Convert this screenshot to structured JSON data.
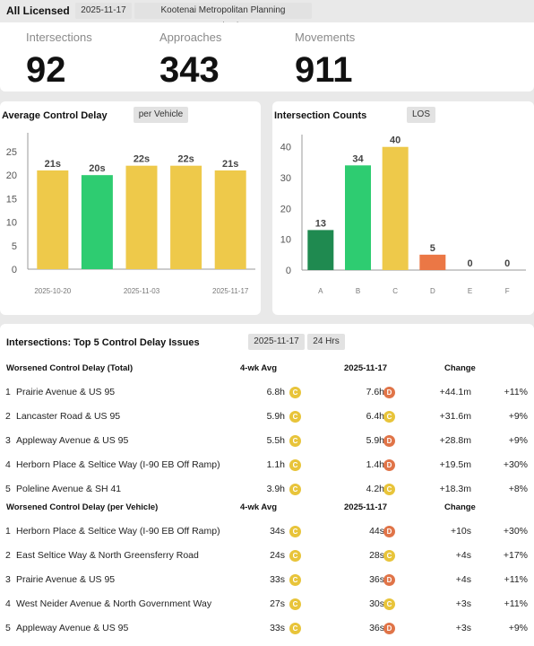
{
  "header": {
    "title": "All Licensed",
    "date_pill": "2025-11-17",
    "org_pill": "Kootenai Metropolitan Planning Organization"
  },
  "stats": [
    {
      "label": "Intersections",
      "value": "92"
    },
    {
      "label": "Approaches",
      "value": "343"
    },
    {
      "label": "Movements",
      "value": "911"
    }
  ],
  "delay_chart": {
    "title": "Average Control Delay",
    "pill": "per Vehicle"
  },
  "counts_chart": {
    "title": "Intersection Counts",
    "pill": "LOS"
  },
  "colors": {
    "green": "#2ecc71",
    "dark_green": "#1f8a50",
    "yellow": "#eec94a",
    "orange": "#eb7745"
  },
  "chart_data": [
    {
      "type": "bar",
      "title": "Average Control Delay",
      "categories": [
        "2025-10-20",
        "",
        "2025-11-03",
        "",
        "2025-11-17"
      ],
      "values": [
        21,
        20,
        22,
        22,
        21
      ],
      "data_labels": [
        "21s",
        "20s",
        "22s",
        "22s",
        "21s"
      ],
      "bar_colors": [
        "#eec94a",
        "#2ecc71",
        "#eec94a",
        "#eec94a",
        "#eec94a"
      ],
      "yticks": [
        0,
        5,
        10,
        15,
        20,
        25
      ],
      "ylim": [
        0,
        29
      ]
    },
    {
      "type": "bar",
      "title": "Intersection Counts",
      "categories": [
        "A",
        "B",
        "C",
        "D",
        "E",
        "F"
      ],
      "values": [
        13,
        34,
        40,
        5,
        0,
        0
      ],
      "data_labels": [
        "13",
        "34",
        "40",
        "5",
        "0",
        "0"
      ],
      "bar_colors": [
        "#1f8a50",
        "#2ecc71",
        "#eec94a",
        "#eb7745",
        "#cccccc",
        "#cccccc"
      ],
      "yticks": [
        0,
        10,
        20,
        30,
        40
      ],
      "ylim": [
        0,
        44
      ]
    }
  ],
  "top5": {
    "title": "Intersections: Top 5 Control Delay Issues",
    "date_pill": "2025-11-17",
    "range_pill": "24 Hrs",
    "sections": [
      {
        "headers": [
          "Worsened Control Delay (Total)",
          "4-wk Avg",
          "2025-11-17",
          "Change"
        ],
        "rows": [
          {
            "rank": "1",
            "name": "Prairie Avenue & US 95",
            "avg": "6.8h",
            "avg_los": "C",
            "cur": "7.6h",
            "cur_los": "D",
            "chg": "+44.1m",
            "pct": "+11%"
          },
          {
            "rank": "2",
            "name": "Lancaster Road & US 95",
            "avg": "5.9h",
            "avg_los": "C",
            "cur": "6.4h",
            "cur_los": "C",
            "chg": "+31.6m",
            "pct": "+9%"
          },
          {
            "rank": "3",
            "name": "Appleway Avenue & US 95",
            "avg": "5.5h",
            "avg_los": "C",
            "cur": "5.9h",
            "cur_los": "D",
            "chg": "+28.8m",
            "pct": "+9%"
          },
          {
            "rank": "4",
            "name": "Herborn Place & Seltice Way (I-90 EB Off Ramp)",
            "avg": "1.1h",
            "avg_los": "C",
            "cur": "1.4h",
            "cur_los": "D",
            "chg": "+19.5m",
            "pct": "+30%"
          },
          {
            "rank": "5",
            "name": "Poleline Avenue & SH 41",
            "avg": "3.9h",
            "avg_los": "C",
            "cur": "4.2h",
            "cur_los": "C",
            "chg": "+18.3m",
            "pct": "+8%"
          }
        ]
      },
      {
        "headers": [
          "Worsened Control Delay (per Vehicle)",
          "4-wk Avg",
          "2025-11-17",
          "Change"
        ],
        "rows": [
          {
            "rank": "1",
            "name": "Herborn Place & Seltice Way (I-90 EB Off Ramp)",
            "avg": "34s",
            "avg_los": "C",
            "cur": "44s",
            "cur_los": "D",
            "chg": "+10s",
            "pct": "+30%"
          },
          {
            "rank": "2",
            "name": "East Seltice Way & North Greensferry Road",
            "avg": "24s",
            "avg_los": "C",
            "cur": "28s",
            "cur_los": "C",
            "chg": "+4s",
            "pct": "+17%"
          },
          {
            "rank": "3",
            "name": "Prairie Avenue & US 95",
            "avg": "33s",
            "avg_los": "C",
            "cur": "36s",
            "cur_los": "D",
            "chg": "+4s",
            "pct": "+11%"
          },
          {
            "rank": "4",
            "name": "West Neider Avenue & North Government Way",
            "avg": "27s",
            "avg_los": "C",
            "cur": "30s",
            "cur_los": "C",
            "chg": "+3s",
            "pct": "+11%"
          },
          {
            "rank": "5",
            "name": "Appleway Avenue & US 95",
            "avg": "33s",
            "avg_los": "C",
            "cur": "36s",
            "cur_los": "D",
            "chg": "+3s",
            "pct": "+9%"
          }
        ]
      }
    ]
  }
}
